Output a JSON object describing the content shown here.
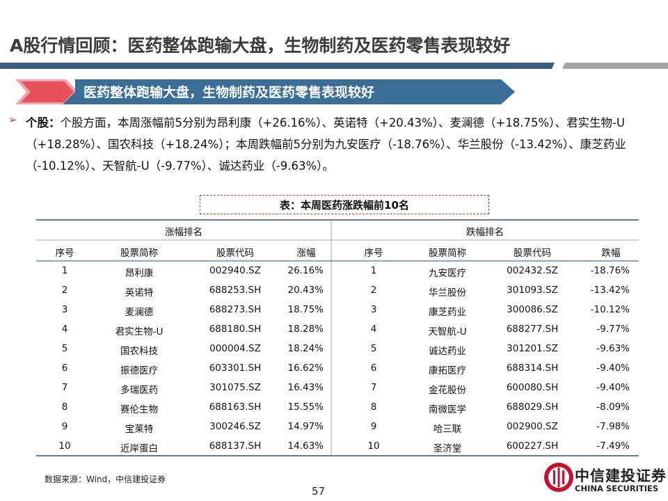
{
  "header": {
    "title": "A股行情回顾：医药整体跑输大盘，生物制药及医药零售表现较好"
  },
  "banner": "医药整体跑输大盘，生物制药及医药零售表现较好",
  "bullet": {
    "label": "个股：",
    "text": "个股方面，本周涨幅前5分别为昂利康（+26.16%）、英诺特（+20.43%）、麦澜德（+18.75%）、君实生物-U（+18.28%）、国农科技（+18.24%）；本周跌幅前5分别为九安医疗（-18.76%）、华兰股份（-13.42%）、康芝药业（-10.12%）、天智航-U（-9.77%）、诚达药业（-9.63%）。"
  },
  "table": {
    "caption": "表：本周医药涨跌幅前10名",
    "group_headers": [
      "涨幅排名",
      "跌幅排名"
    ],
    "columns": [
      "序号",
      "股票简称",
      "股票代码",
      "涨幅",
      "序号",
      "股票简称",
      "股票代码",
      "跌幅"
    ],
    "rows": [
      [
        "1",
        "昂利康",
        "002940.SZ",
        "26.16%",
        "1",
        "九安医疗",
        "002432.SZ",
        "-18.76%"
      ],
      [
        "2",
        "英诺特",
        "688253.SH",
        "20.43%",
        "2",
        "华兰股份",
        "301093.SZ",
        "-13.42%"
      ],
      [
        "3",
        "麦澜德",
        "688273.SH",
        "18.75%",
        "3",
        "康芝药业",
        "300086.SZ",
        "-10.12%"
      ],
      [
        "4",
        "君实生物-U",
        "688180.SH",
        "18.28%",
        "4",
        "天智航-U",
        "688277.SH",
        "-9.77%"
      ],
      [
        "5",
        "国农科技",
        "000004.SZ",
        "18.24%",
        "5",
        "诚达药业",
        "301201.SZ",
        "-9.63%"
      ],
      [
        "6",
        "振德医疗",
        "603301.SH",
        "16.62%",
        "6",
        "康拓医疗",
        "688314.SH",
        "-9.40%"
      ],
      [
        "7",
        "多瑞医药",
        "301075.SZ",
        "16.43%",
        "7",
        "金花股份",
        "600080.SH",
        "-9.40%"
      ],
      [
        "8",
        "赛伦生物",
        "688163.SH",
        "15.55%",
        "8",
        "南微医学",
        "688029.SH",
        "-8.09%"
      ],
      [
        "9",
        "宝莱特",
        "300246.SZ",
        "14.97%",
        "9",
        "哈三联",
        "002900.SZ",
        "-7.98%"
      ],
      [
        "10",
        "近岸蛋白",
        "688137.SH",
        "14.63%",
        "10",
        "圣济堂",
        "600227.SH",
        "-7.49%"
      ]
    ]
  },
  "source": "数据来源：Wind，中信建投证券",
  "page_number": "57",
  "logo": {
    "cn": "中信建投证券",
    "en": "CHINA SECURITIES"
  }
}
